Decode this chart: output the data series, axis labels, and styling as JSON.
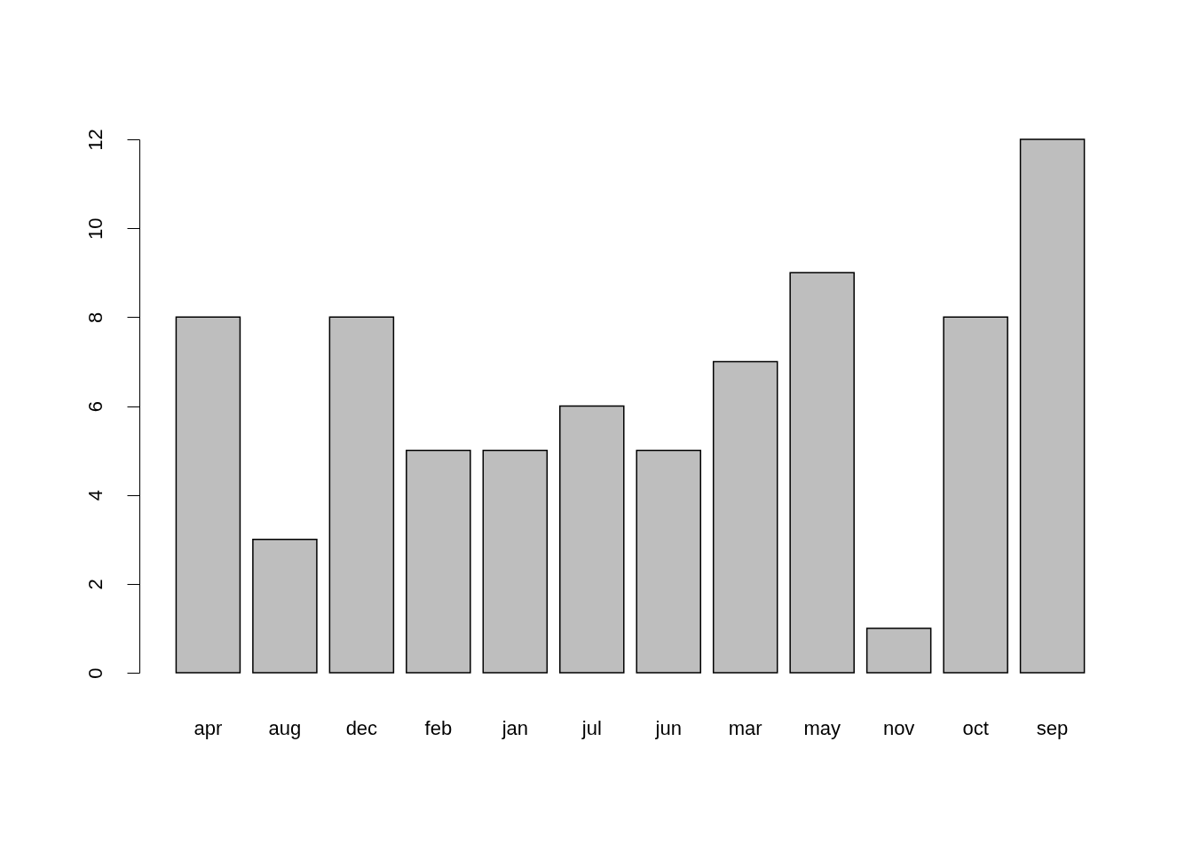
{
  "chart_data": {
    "type": "bar",
    "categories": [
      "apr",
      "aug",
      "dec",
      "feb",
      "jan",
      "jul",
      "jun",
      "mar",
      "may",
      "nov",
      "oct",
      "sep"
    ],
    "values": [
      8,
      3,
      8,
      5,
      5,
      6,
      5,
      7,
      9,
      1,
      8,
      12
    ],
    "color": "#bebebe",
    "ylim": [
      0,
      12
    ],
    "yticks": [
      0,
      2,
      4,
      6,
      8,
      10,
      12
    ]
  }
}
